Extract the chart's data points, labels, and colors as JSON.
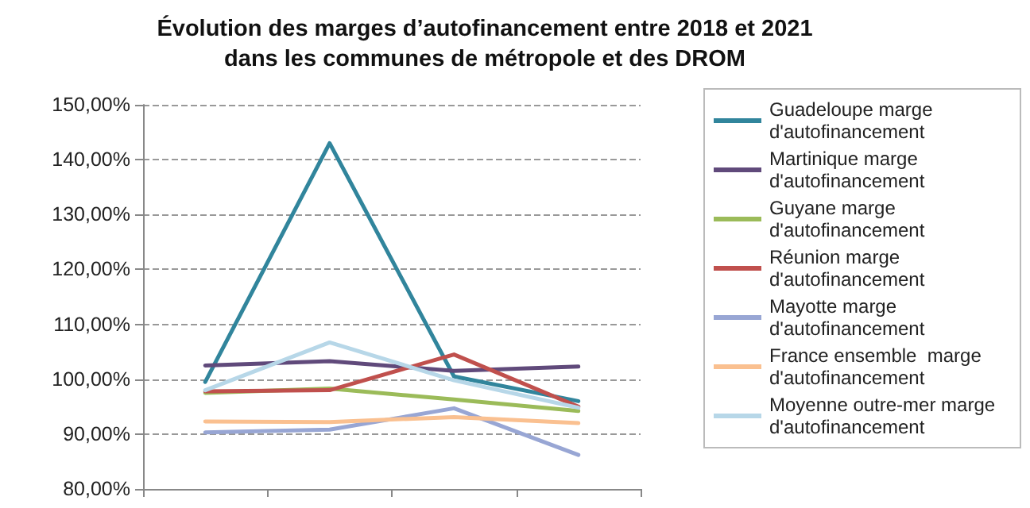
{
  "chart_data": {
    "type": "line",
    "title": "Évolution des marges d’autofinancement entre 2018 et 2021\ndans les communes de métropole et des DROM",
    "categories": [
      null,
      null,
      null,
      null
    ],
    "series": [
      {
        "name": "Guadeloupe marge d'autofinancement",
        "color": "#31859c",
        "values": [
          99.5,
          143,
          100.5,
          96
        ]
      },
      {
        "name": "Martinique marge d'autofinancement",
        "color": "#604a7b",
        "values": [
          102.5,
          103.3,
          101.5,
          102.3
        ]
      },
      {
        "name": "Guyane marge d'autofinancement",
        "color": "#9bbb59",
        "values": [
          97.5,
          98.3,
          96.3,
          94.2
        ]
      },
      {
        "name": "Réunion marge d'autofinancement",
        "color": "#c0504d",
        "values": [
          97.8,
          98,
          104.5,
          95
        ]
      },
      {
        "name": "Mayotte marge d'autofinancement",
        "color": "#98a6d4",
        "values": [
          90.3,
          90.8,
          94.7,
          86.2
        ]
      },
      {
        "name": "France ensemble  marge d'autofinancement",
        "color": "#fac090",
        "values": [
          92.3,
          92.2,
          93.1,
          92
        ]
      },
      {
        "name": "Moyenne outre-mer marge d'autofinancement",
        "color": "#b7d7e8",
        "values": [
          98,
          106.7,
          99.8,
          94.8
        ]
      }
    ],
    "ylim": [
      80,
      150
    ],
    "yticks": [
      {
        "value": 80,
        "label": "80,00%"
      },
      {
        "value": 90,
        "label": "90,00%"
      },
      {
        "value": 100,
        "label": "100,00%"
      },
      {
        "value": 110,
        "label": "110,00%"
      },
      {
        "value": 120,
        "label": "120,00%"
      },
      {
        "value": 130,
        "label": "130,00%"
      },
      {
        "value": 140,
        "label": "140,00%"
      },
      {
        "value": 150,
        "label": "150,00%"
      }
    ],
    "grid": "y",
    "legend": "right",
    "marker": "none",
    "line_style": "solid",
    "tick_labels": "y"
  }
}
